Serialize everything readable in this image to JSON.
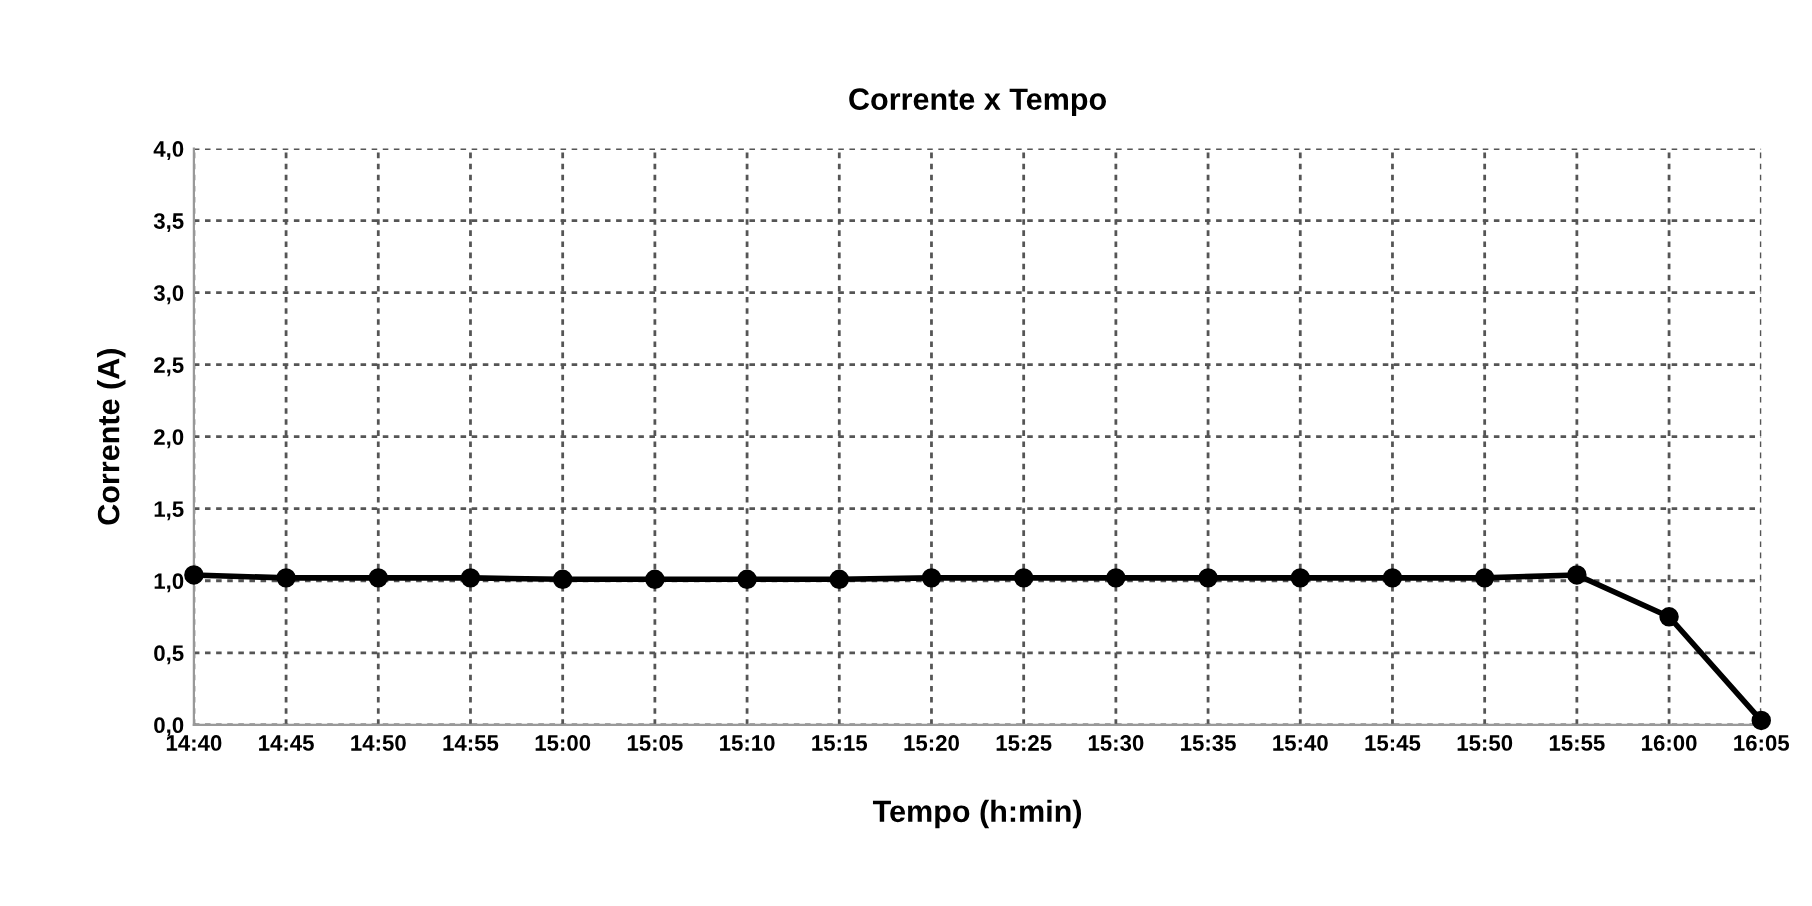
{
  "chart_data": {
    "type": "line",
    "title": "Corrente x Tempo",
    "xlabel": "Tempo (h:min)",
    "ylabel": "Corrente (A)",
    "categories": [
      "14:40",
      "14:45",
      "14:50",
      "14:55",
      "15:00",
      "15:05",
      "15:10",
      "15:15",
      "15:20",
      "15:25",
      "15:30",
      "15:35",
      "15:40",
      "15:45",
      "15:50",
      "15:55",
      "16:00",
      "16:05"
    ],
    "series": [
      {
        "color": "#000000",
        "values": [
          1.04,
          1.02,
          1.02,
          1.02,
          1.01,
          1.01,
          1.01,
          1.01,
          1.02,
          1.02,
          1.02,
          1.02,
          1.02,
          1.02,
          1.02,
          1.04,
          0.75,
          0.03
        ]
      }
    ],
    "ylim": [
      0,
      4
    ],
    "yticks": [
      {
        "value": 0,
        "label": "0,0"
      },
      {
        "value": 0.5,
        "label": "0,5"
      },
      {
        "value": 1,
        "label": "1,0"
      },
      {
        "value": 1.5,
        "label": "1,5"
      },
      {
        "value": 2,
        "label": "2,0"
      },
      {
        "value": 2.5,
        "label": "2,5"
      },
      {
        "value": 3,
        "label": "3,0"
      },
      {
        "value": 3.5,
        "label": "3,5"
      },
      {
        "value": 4,
        "label": "4,0"
      }
    ],
    "grid": true,
    "marker": "circle",
    "line_style": "solid"
  }
}
